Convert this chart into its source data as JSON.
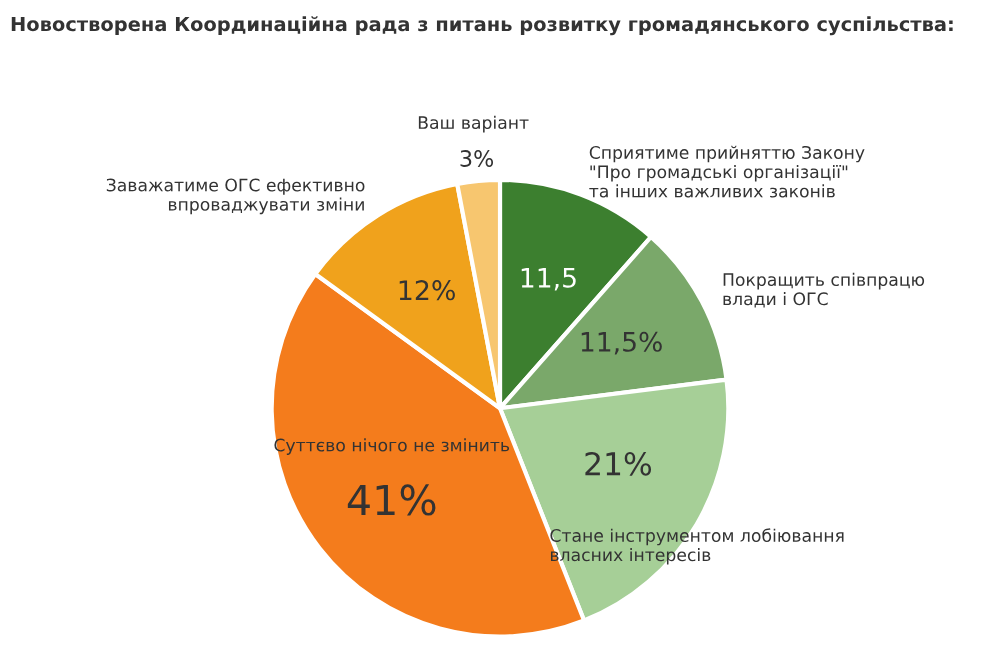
{
  "chart_data": {
    "type": "pie",
    "title": "Новостворена Координаційна рада з питань розвитку громадянського суспільства:",
    "categories": [
      "Сприятиме прийняттю Закону\n\"Про громадські організації\"\nта інших важливих законів",
      "Покращить співпрацю\nвлади і ОГС",
      "Стане інструментом лобіювання\nвласних інтересів",
      "Суттєво нічого не змінить",
      "Заважатиме ОГС ефективно\nвпроваджувати зміни",
      "Ваш варіант"
    ],
    "values": [
      11.5,
      11.5,
      21,
      41,
      12,
      3
    ],
    "colors": [
      "#3c7f2f",
      "#7aa86a",
      "#a6cf97",
      "#f47c1c",
      "#f0a21c",
      "#f7c66f"
    ],
    "value_labels": [
      "11,5",
      "11,5%",
      "21%",
      "41%",
      "12%",
      "3%"
    ]
  }
}
